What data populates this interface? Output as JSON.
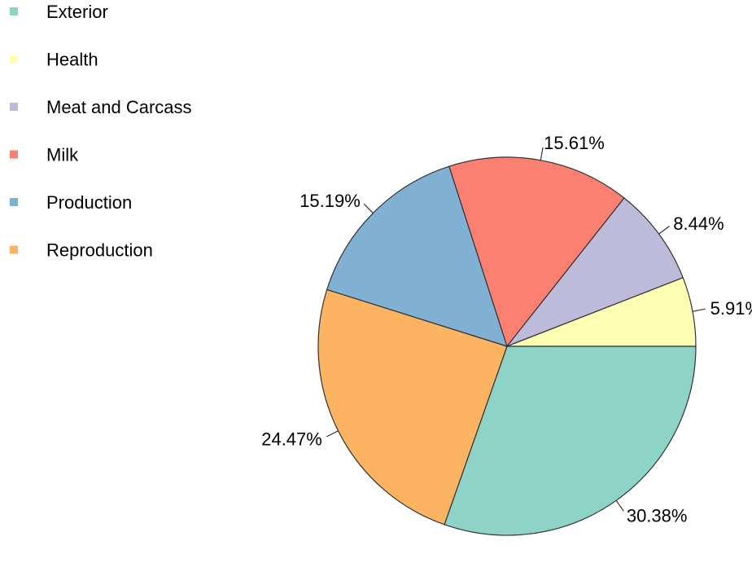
{
  "chart_data": {
    "type": "pie",
    "title": "",
    "legend_position": "top-left",
    "slices": [
      {
        "label": "Exterior",
        "value": 30.38,
        "value_label": "30.38%",
        "color": "#8dd3c7"
      },
      {
        "label": "Reproduction",
        "value": 24.47,
        "value_label": "24.47%",
        "color": "#fdb462"
      },
      {
        "label": "Production",
        "value": 15.19,
        "value_label": "15.19%",
        "color": "#80b1d3"
      },
      {
        "label": "Milk",
        "value": 15.61,
        "value_label": "15.61%",
        "color": "#fb8072"
      },
      {
        "label": "Meat and Carcass",
        "value": 8.44,
        "value_label": "8.44%",
        "color": "#bebada"
      },
      {
        "label": "Health",
        "value": 5.91,
        "value_label": "5.91%",
        "color": "#ffffb3"
      }
    ],
    "legend": [
      {
        "label": "Exterior",
        "color": "#8dd3c7"
      },
      {
        "label": "Health",
        "color": "#ffffb3"
      },
      {
        "label": "Meat and Carcass",
        "color": "#bebada"
      },
      {
        "label": "Milk",
        "color": "#fb8072"
      },
      {
        "label": "Production",
        "color": "#80b1d3"
      },
      {
        "label": "Reproduction",
        "color": "#fdb462"
      }
    ]
  }
}
